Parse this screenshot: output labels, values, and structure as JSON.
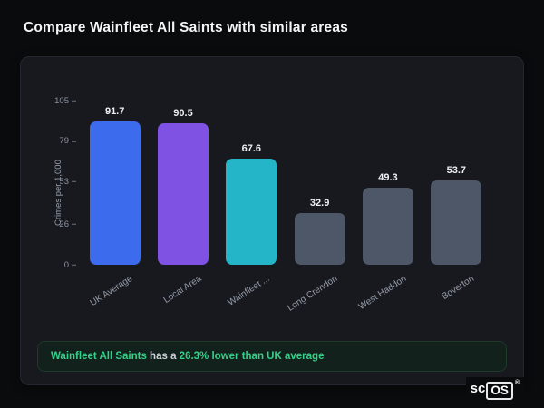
{
  "title": "Compare Wainfleet All Saints with similar areas",
  "chart_data": {
    "type": "bar",
    "title": "Compare Wainfleet All Saints with similar areas",
    "ylabel": "Crimes per 1,000",
    "xlabel": "",
    "ylim": [
      0,
      105
    ],
    "yticks": [
      105,
      79,
      53,
      26,
      0
    ],
    "grid": false,
    "legend": false,
    "categories": [
      "UK Average",
      "Local Area",
      "Wainfleet ...",
      "Long Crendon",
      "West Haddon",
      "Boverton"
    ],
    "values": [
      91.7,
      90.5,
      67.6,
      32.9,
      49.3,
      53.7
    ],
    "value_labels": [
      "91.7",
      "90.5",
      "67.6",
      "32.9",
      "49.3",
      "53.7"
    ],
    "bar_colors": [
      "#3d6bee",
      "#7f52e3",
      "#25b5c8",
      "#4d5768",
      "#4d5768",
      "#4d5768"
    ],
    "axis_text_color": "#959ca8",
    "value_text_color": "#eef0f3"
  },
  "insight": {
    "area_name": "Wainfleet All Saints",
    "connector": " has a ",
    "highlight": "26.3% lower than UK average",
    "accent_color": "#35d08a",
    "text_color": "#ced3da"
  },
  "logo": {
    "prefix": "sc",
    "boxed": "OS",
    "registered": "®"
  }
}
